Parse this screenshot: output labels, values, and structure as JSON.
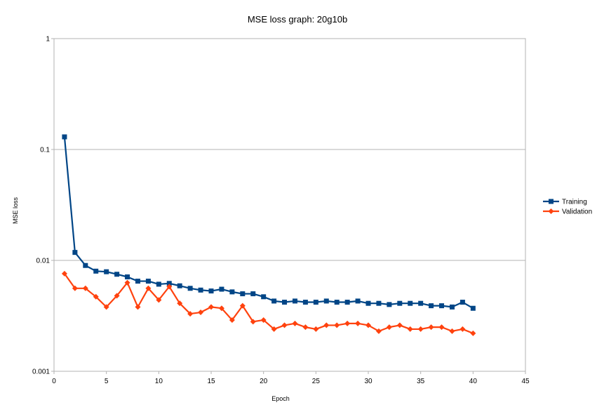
{
  "chart_data": {
    "type": "line",
    "title": "MSE loss graph: 20g10b",
    "xlabel": "Epoch",
    "ylabel": "MSE loss",
    "yscale": "log",
    "xlim": [
      0,
      45
    ],
    "ylim": [
      0.001,
      1
    ],
    "xticks": [
      "0",
      "5",
      "10",
      "15",
      "20",
      "25",
      "30",
      "35",
      "40",
      "45"
    ],
    "yticks": [
      "0.001",
      "0.01",
      "0.1",
      "1"
    ],
    "grid": "horizontal major lines",
    "legend_position": "right",
    "x": [
      1,
      2,
      3,
      4,
      5,
      6,
      7,
      8,
      9,
      10,
      11,
      12,
      13,
      14,
      15,
      16,
      17,
      18,
      19,
      20,
      21,
      22,
      23,
      24,
      25,
      26,
      27,
      28,
      29,
      30,
      31,
      32,
      33,
      34,
      35,
      36,
      37,
      38,
      39,
      40
    ],
    "series": [
      {
        "name": "Training",
        "color": "#004586",
        "marker": "square",
        "values": [
          0.13,
          0.0118,
          0.009,
          0.008,
          0.0079,
          0.0075,
          0.0071,
          0.0065,
          0.0065,
          0.0061,
          0.0062,
          0.0059,
          0.0056,
          0.0054,
          0.0053,
          0.0055,
          0.0052,
          0.005,
          0.005,
          0.0047,
          0.0043,
          0.0042,
          0.0043,
          0.0042,
          0.0042,
          0.0043,
          0.0042,
          0.0042,
          0.0043,
          0.0041,
          0.0041,
          0.004,
          0.0041,
          0.0041,
          0.0041,
          0.0039,
          0.0039,
          0.0038,
          0.0042,
          0.0037
        ]
      },
      {
        "name": "Validation",
        "color": "#ff420e",
        "marker": "diamond",
        "values": [
          0.0076,
          0.0056,
          0.0056,
          0.0047,
          0.0038,
          0.0048,
          0.0063,
          0.0038,
          0.0056,
          0.0044,
          0.0058,
          0.0041,
          0.0033,
          0.0034,
          0.0038,
          0.0037,
          0.0029,
          0.0039,
          0.0028,
          0.0029,
          0.0024,
          0.0026,
          0.0027,
          0.0025,
          0.0024,
          0.0026,
          0.0026,
          0.0027,
          0.0027,
          0.0026,
          0.0023,
          0.0025,
          0.0026,
          0.0024,
          0.0024,
          0.0025,
          0.0025,
          0.0023,
          0.0024,
          0.0022
        ]
      }
    ]
  }
}
